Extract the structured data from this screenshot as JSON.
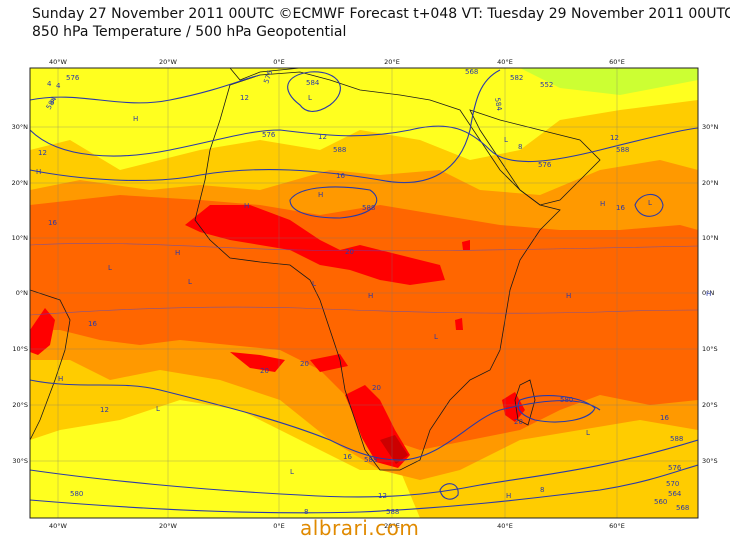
{
  "header": {
    "line1": "Sunday 27 November 2011 00UTC ©ECMWF Forecast t+048 VT: Tuesday 29 November 2011 00UTC",
    "line2": "850 hPa Temperature / 500 hPa Geopotential"
  },
  "axes": {
    "lon_labels_top": [
      "40°W",
      "20°W",
      "0°E",
      "20°E",
      "40°E",
      "60°E"
    ],
    "lon_labels_bottom": [
      "40°W",
      "20°W",
      "0°E",
      "20°E",
      "40°E",
      "60°E"
    ],
    "lat_labels_left": [
      "30°N",
      "20°N",
      "10°N",
      "0°N",
      "10°S",
      "20°S",
      "30°S"
    ],
    "lat_labels_right": [
      "30°N",
      "20°N",
      "10°N",
      "0°N",
      "10°S",
      "20°S",
      "30°S"
    ]
  },
  "contour_labels": {
    "geopotential": [
      "576",
      "576",
      "584",
      "588",
      "588",
      "584",
      "576",
      "588",
      "588",
      "580",
      "568",
      "576",
      "588",
      "580",
      "576",
      "570",
      "564",
      "560",
      "552",
      "588",
      "584",
      "582",
      "568"
    ],
    "temperature": [
      "8",
      "4",
      "12",
      "16",
      "16",
      "12",
      "20",
      "20",
      "20",
      "20",
      "16",
      "12",
      "16",
      "12",
      "8",
      "12",
      "8",
      "4",
      "16",
      "8",
      "12",
      "16",
      "20"
    ]
  },
  "pressure_centres": [
    "L",
    "L",
    "L",
    "H",
    "H",
    "H",
    "L",
    "H",
    "H",
    "L",
    "H",
    "L",
    "H",
    "H",
    "L",
    "H",
    "L",
    "L",
    "H",
    "H",
    "L"
  ],
  "colors": {
    "ocean_light": "#ffff1f",
    "temp_14_18": "#ffcc00",
    "temp_18_22": "#ff9900",
    "temp_22_26": "#ff6600",
    "temp_26_plus": "#ff0000",
    "temp_hot_max": "#cc0000",
    "green_cool": "#b4ff00",
    "contour_line": "#2b3aa8",
    "coastline": "#1a1a1a"
  },
  "watermark": "albrari.com"
}
